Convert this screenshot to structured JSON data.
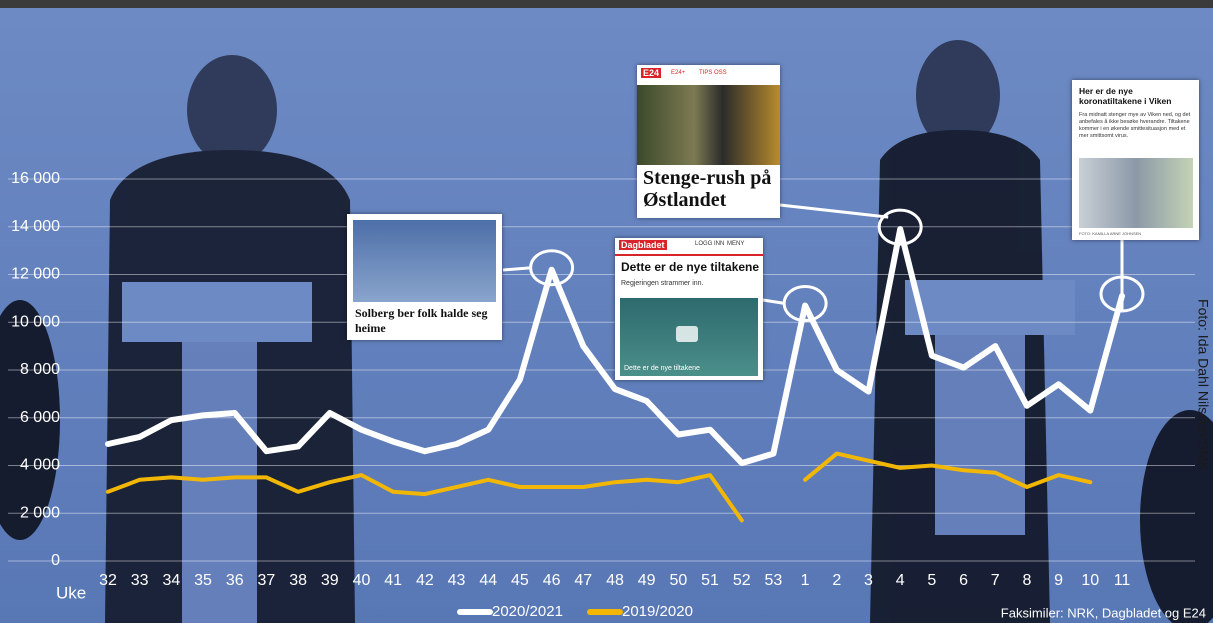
{
  "chart_data": {
    "type": "line",
    "x_label": "Uke",
    "categories": [
      "32",
      "33",
      "34",
      "35",
      "36",
      "37",
      "38",
      "39",
      "40",
      "41",
      "42",
      "43",
      "44",
      "45",
      "46",
      "47",
      "48",
      "49",
      "50",
      "51",
      "52",
      "53",
      "1",
      "2",
      "3",
      "4",
      "5",
      "6",
      "7",
      "8",
      "9",
      "10",
      "11"
    ],
    "series": [
      {
        "name": "2020/2021",
        "color": "#ffffff",
        "values": [
          4900,
          5200,
          5900,
          6100,
          6200,
          4600,
          4800,
          6200,
          5500,
          5000,
          4600,
          4900,
          5500,
          7600,
          12200,
          9000,
          7200,
          6700,
          5300,
          5500,
          4100,
          4500,
          10700,
          8000,
          7100,
          13900,
          8600,
          8100,
          9000,
          6500,
          7400,
          6300,
          11100
        ]
      },
      {
        "name": "2019/2020",
        "color": "#f2b705",
        "values": [
          2900,
          3400,
          3500,
          3400,
          3500,
          3500,
          2900,
          3300,
          3600,
          2900,
          2800,
          3100,
          3400,
          3100,
          3100,
          3100,
          3300,
          3400,
          3300,
          3600,
          1700,
          null,
          3400,
          4500,
          4200,
          3900,
          4000,
          3800,
          3700,
          3100,
          3600,
          3300,
          null
        ]
      }
    ],
    "ylim": [
      0,
      16000
    ],
    "yticks": [
      0,
      {
        "value": 2000,
        "label": "2 000"
      },
      {
        "value": 4000,
        "label": "4 000"
      },
      {
        "value": 6000,
        "label": "6 000"
      },
      {
        "value": 8000,
        "label": "8 000"
      },
      {
        "value": 10000,
        "label": "10 000"
      },
      {
        "value": 12000,
        "label": "12 000"
      },
      {
        "value": 14000,
        "label": "14 000"
      },
      {
        "value": 16000,
        "label": "16 000"
      }
    ],
    "grid": true,
    "legend": "bottom",
    "annotations": [
      {
        "headline": "Solberg ber folk halde seg heime"
      },
      {
        "source": "Dagbladet",
        "nav": [
          "LOGG INN",
          "MENY"
        ],
        "headline": "Dette er de nye tiltakene",
        "subtitle": "Regjeringen strammer inn.",
        "caption": "Dette er de nye tiltakene"
      },
      {
        "source": "E24",
        "nav": [
          "E24+",
          "TIPS OSS"
        ],
        "headline": "Stenge-rush på Østlandet"
      },
      {
        "headline": "Her er de nye koronatiltakene i Viken",
        "body": "Fra midnatt stenger mye av Viken ned, og det anbefales å ikke besøke hverandre. Tiltakene kommer i en økende smittesituasjon med et mer smittsomt virus.",
        "caption": "FOTO: KAMILLA ARNE JOHNSEN"
      }
    ],
    "photo_credit": "Foto: Ida Dahl Nilssen/SMK",
    "facsimile_credit": "Faksimiler: NRK, Dagbladet og E24"
  }
}
